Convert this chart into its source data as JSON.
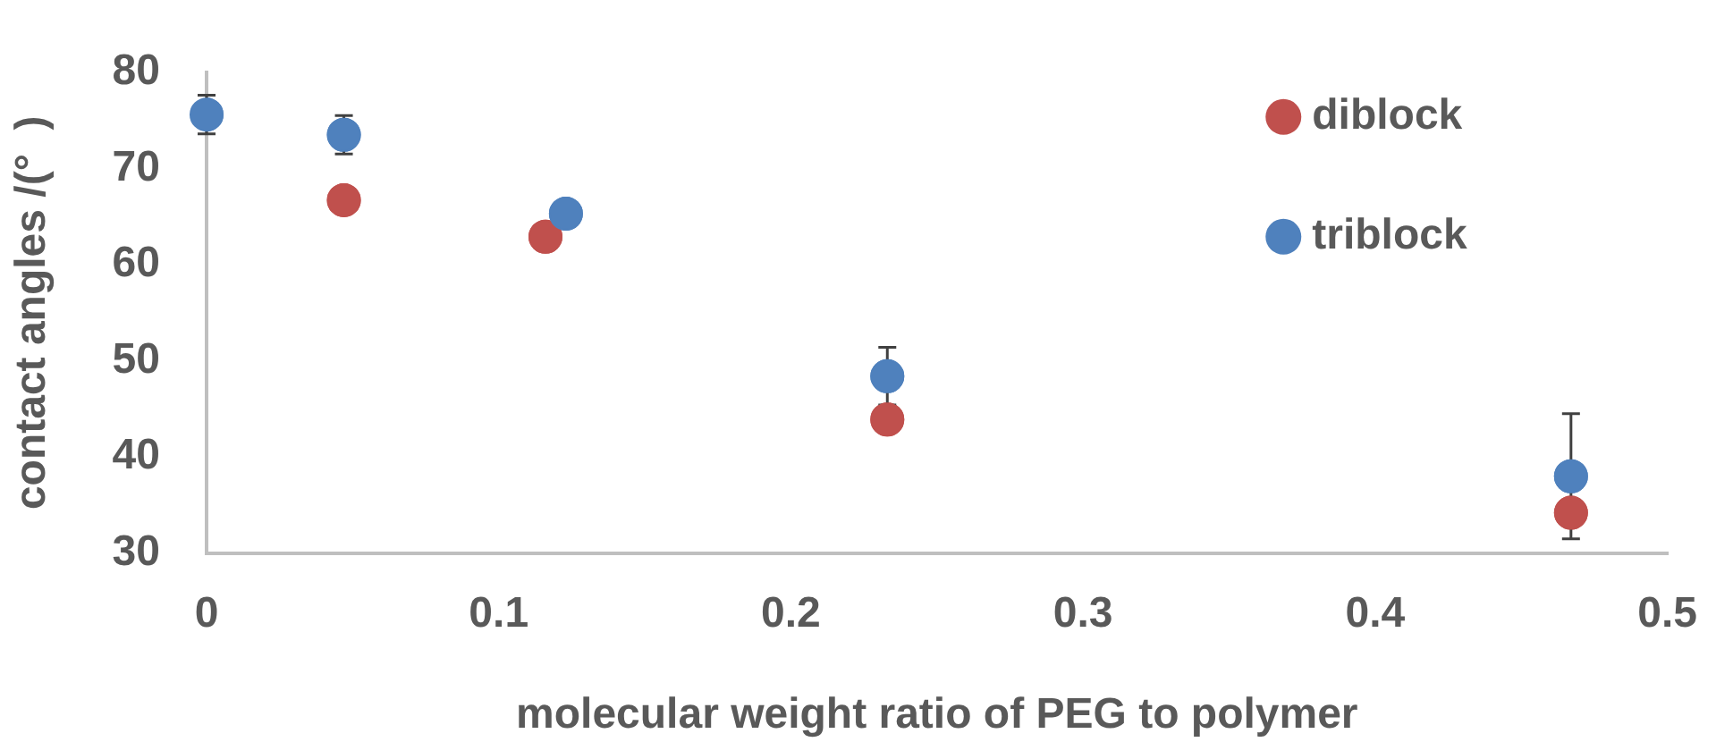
{
  "chart_data": {
    "type": "scatter",
    "xlabel": "molecular weight ratio of PEG to polymer",
    "ylabel": "contact angles /(°  )",
    "xlim": [
      0,
      0.5
    ],
    "xticks": [
      0,
      0.1,
      0.2,
      0.3,
      0.4,
      0.5
    ],
    "ylim": [
      30,
      80
    ],
    "yticks": [
      30,
      40,
      50,
      60,
      70,
      80
    ],
    "grid": false,
    "legend": "top right",
    "marker": "circle",
    "series": [
      {
        "name": "diblock",
        "color": "#c0504d",
        "x": [
          0.047,
          0.116,
          0.233,
          0.467
        ],
        "values": [
          66.7,
          62.9,
          43.9,
          34.2
        ]
      },
      {
        "name": "triblock",
        "color": "#4f81bd",
        "x": [
          0,
          0.047,
          0.123,
          0.233,
          0.467
        ],
        "values": [
          75.6,
          73.5,
          65.3,
          48.4,
          38.0
        ],
        "errors": [
          2,
          2,
          null,
          3,
          6.5
        ]
      }
    ]
  }
}
